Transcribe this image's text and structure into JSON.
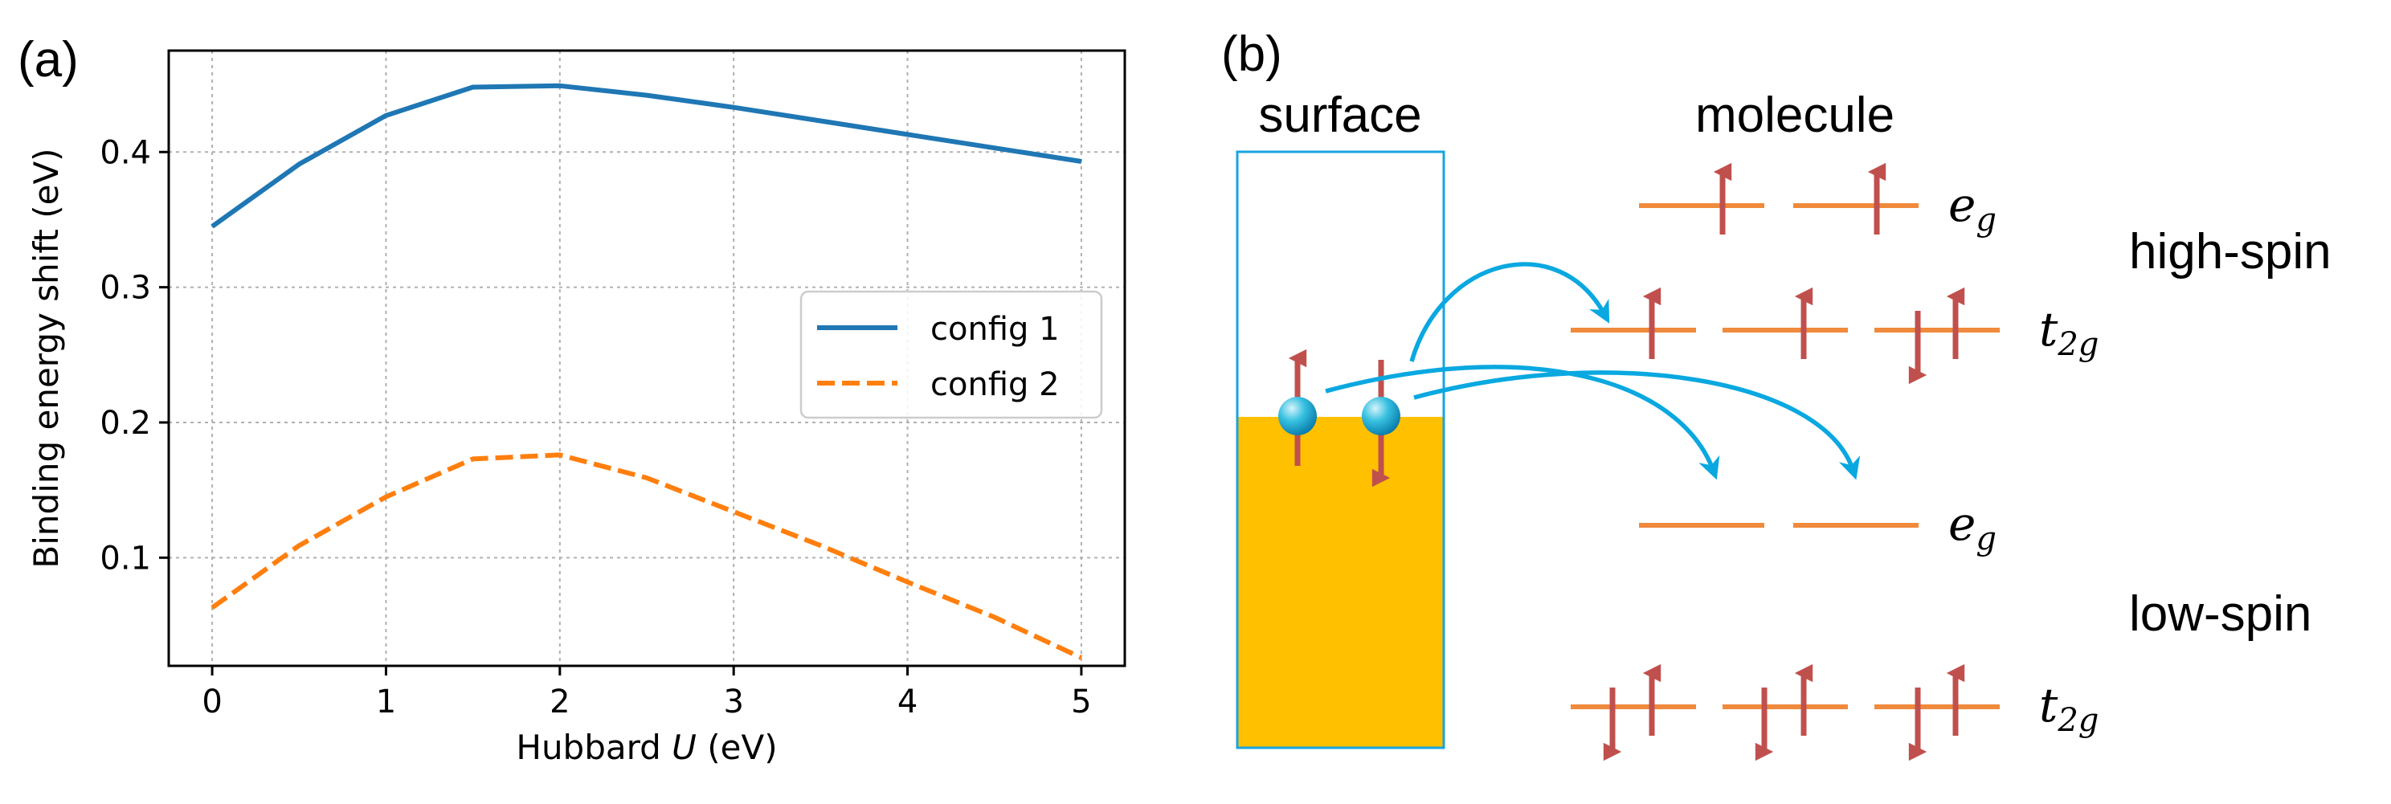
{
  "panel_a": {
    "label": "(a)",
    "legend": [
      "config 1",
      "config 2"
    ]
  },
  "panel_b": {
    "label": "(b)",
    "surface_label": "surface",
    "molecule_label": "molecule",
    "eg_label": "e",
    "eg_sub": "g",
    "t2g_label": "t",
    "t2g_sub": "2g",
    "high_spin_label": "high-spin",
    "low_spin_label": "low-spin"
  },
  "colors": {
    "config1": "#1f77b4",
    "config2": "#ff7f0e",
    "level": "#f08a3c",
    "spin_arrow": "#c0504d",
    "hop_arrow": "#0aa8e0",
    "surface_fill": "#ffc000",
    "surface_border": "#1aa3e0"
  },
  "chart_data": {
    "type": "line",
    "title": "",
    "xlabel_prefix": "Hubbard ",
    "xlabel_var": "U",
    "xlabel_suffix": " (eV)",
    "ylabel": "Binding energy shift (eV)",
    "xlim": [
      -0.25,
      5.25
    ],
    "ylim": [
      0.02,
      0.475
    ],
    "xticks": [
      0,
      1,
      2,
      3,
      4,
      5
    ],
    "yticks": [
      0.1,
      0.2,
      0.3,
      0.4
    ],
    "ytick_labels": [
      "0.1",
      "0.2",
      "0.3",
      "0.4"
    ],
    "grid": true,
    "legend_position": "center-right",
    "series": [
      {
        "name": "config 1",
        "style": "solid",
        "x": [
          0,
          0.5,
          1,
          1.5,
          2,
          2.5,
          3,
          3.5,
          4,
          4.5,
          5
        ],
        "y": [
          0.345,
          0.391,
          0.427,
          0.448,
          0.449,
          0.442,
          0.433,
          0.423,
          0.413,
          0.403,
          0.393
        ]
      },
      {
        "name": "config 2",
        "style": "dashed",
        "x": [
          0,
          0.5,
          1,
          1.5,
          2,
          2.5,
          3,
          3.5,
          4,
          4.5,
          5
        ],
        "y": [
          0.063,
          0.109,
          0.145,
          0.173,
          0.176,
          0.159,
          0.134,
          0.109,
          0.082,
          0.056,
          0.026
        ]
      }
    ]
  }
}
